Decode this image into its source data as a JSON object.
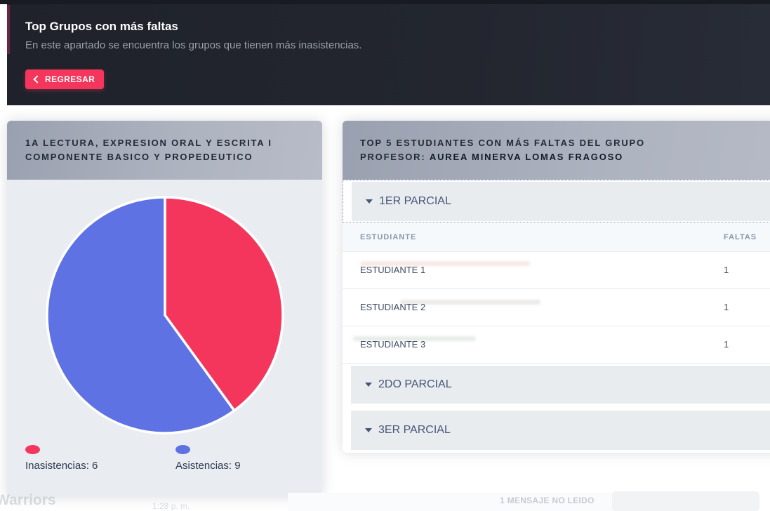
{
  "banner": {
    "title": "Top Grupos con más faltas",
    "subtitle": "En este apartado se encuentra los grupos que tienen más inasistencias.",
    "back_button_label": "REGRESAR",
    "back_button_color": "#f5365c"
  },
  "group_card": {
    "title_line1": "1A LECTURA, EXPRESION ORAL Y ESCRITA I",
    "title_line2": "COMPONENTE BASICO Y PROPEDEUTICO",
    "legend": [
      {
        "label": "Inasistencias: 6",
        "color": "#f5365c"
      },
      {
        "label": "Asistencias: 9",
        "color": "#5e72e4"
      }
    ]
  },
  "chart_data": {
    "type": "pie",
    "title": "1A LECTURA, EXPRESION ORAL Y ESCRITA I COMPONENTE BASICO Y PROPEDEUTICO",
    "labels": [
      "Inasistencias",
      "Asistencias"
    ],
    "values": [
      6,
      9
    ],
    "colors": [
      "#f5365c",
      "#5e72e4"
    ],
    "start_angle_deg": -90,
    "direction": "clockwise",
    "legend_position": "bottom",
    "slice_border_color": "#ffffff"
  },
  "students_card": {
    "title": "TOP 5 ESTUDIANTES CON MÁS FALTAS DEL GRUPO",
    "professor_prefix": "PROFESOR:",
    "professor_name": "AUREA MINERVA LOMAS FRAGOSO",
    "sections": [
      {
        "label": "1ER PARCIAL",
        "expanded": true
      },
      {
        "label": "2DO PARCIAL",
        "expanded": false
      },
      {
        "label": "3ER PARCIAL",
        "expanded": false
      }
    ],
    "table": {
      "header_estudiante": "ESTUDIANTE",
      "header_faltas": "FALTAS",
      "rows": [
        {
          "estudiante": "ESTUDIANTE 1",
          "faltas": "1"
        },
        {
          "estudiante": "ESTUDIANTE 2",
          "faltas": "1"
        },
        {
          "estudiante": "ESTUDIANTE 3",
          "faltas": "1"
        }
      ]
    }
  },
  "background_remnants": {
    "chat_name": "Warriors",
    "chat_time": "1:28 p. m.",
    "unread_message": "1 MENSAJE NO LEIDO"
  }
}
